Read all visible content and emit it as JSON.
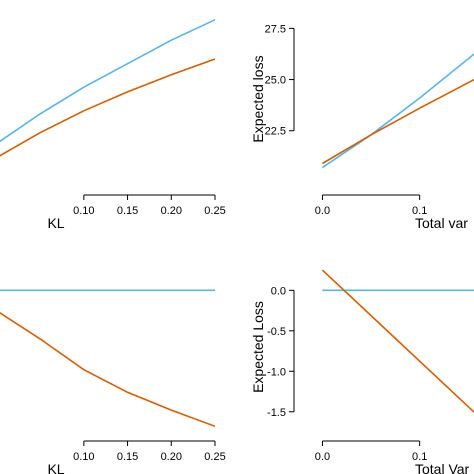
{
  "colors": {
    "blue": "#56B4E9",
    "orange": "#D55E00"
  },
  "chart_data": [
    {
      "type": "line",
      "xlabel": "KL",
      "ylabel": "",
      "xlim": [
        -0.005,
        0.25
      ],
      "ylim": [
        18.5,
        29.6
      ],
      "x_ticks": [
        "0.10",
        "0.15",
        "0.20",
        "0.25"
      ],
      "x_tick_values": [
        0.1,
        0.15,
        0.2,
        0.25
      ],
      "y_ticks": [],
      "y_tick_values": [],
      "series": [
        {
          "color": "blue",
          "x": [
            0.0,
            0.05,
            0.1,
            0.15,
            0.2,
            0.25
          ],
          "y": [
            21.2,
            23.1,
            24.8,
            26.3,
            27.8,
            29.1
          ]
        },
        {
          "color": "orange",
          "x": [
            0.0,
            0.05,
            0.1,
            0.15,
            0.2,
            0.25
          ],
          "y": [
            20.3,
            21.9,
            23.3,
            24.5,
            25.6,
            26.6
          ]
        }
      ]
    },
    {
      "type": "line",
      "xlabel": "Total var",
      "ylabel": "Expected loss",
      "xlim": [
        -0.02,
        0.16
      ],
      "ylim": [
        19.8,
        28.3
      ],
      "x_ticks": [
        "0.0",
        "0.1"
      ],
      "x_tick_values": [
        0.0,
        0.1
      ],
      "y_ticks": [
        "22.5",
        "25.0",
        "27.5"
      ],
      "y_tick_values": [
        22.5,
        25.0,
        27.5
      ],
      "series": [
        {
          "color": "blue",
          "x": [
            0.0,
            0.05,
            0.1,
            0.16
          ],
          "y": [
            20.7,
            22.3,
            24.1,
            26.4
          ]
        },
        {
          "color": "orange",
          "x": [
            0.0,
            0.05,
            0.1,
            0.16
          ],
          "y": [
            20.9,
            22.3,
            23.6,
            25.1
          ]
        }
      ]
    },
    {
      "type": "line",
      "xlabel": "KL",
      "ylabel": "",
      "xlim": [
        -0.005,
        0.25
      ],
      "ylim": [
        -1.75,
        0.35
      ],
      "x_ticks": [
        "0.10",
        "0.15",
        "0.20",
        "0.25"
      ],
      "x_tick_values": [
        0.1,
        0.15,
        0.2,
        0.25
      ],
      "y_ticks": [],
      "y_tick_values": [],
      "series": [
        {
          "color": "blue",
          "x": [
            0.0,
            0.25
          ],
          "y": [
            0.0,
            0.0
          ]
        },
        {
          "color": "orange",
          "x": [
            0.0,
            0.05,
            0.1,
            0.15,
            0.2,
            0.25
          ],
          "y": [
            -0.25,
            -0.6,
            -0.98,
            -1.26,
            -1.48,
            -1.68
          ]
        }
      ]
    },
    {
      "type": "line",
      "xlabel": "Total Var",
      "ylabel": "Expected Loss",
      "xlim": [
        -0.02,
        0.16
      ],
      "ylim": [
        -1.75,
        0.35
      ],
      "x_ticks": [
        "0.0",
        "0.1"
      ],
      "x_tick_values": [
        0.0,
        0.1
      ],
      "y_ticks": [
        "0.0",
        "-0.5",
        "-1.0",
        "-1.5"
      ],
      "y_tick_values": [
        0.0,
        -0.5,
        -1.0,
        -1.5
      ],
      "series": [
        {
          "color": "blue",
          "x": [
            0.0,
            0.16
          ],
          "y": [
            0.0,
            0.0
          ]
        },
        {
          "color": "orange",
          "x": [
            0.0,
            0.16
          ],
          "y": [
            0.25,
            -1.55
          ]
        }
      ]
    }
  ]
}
